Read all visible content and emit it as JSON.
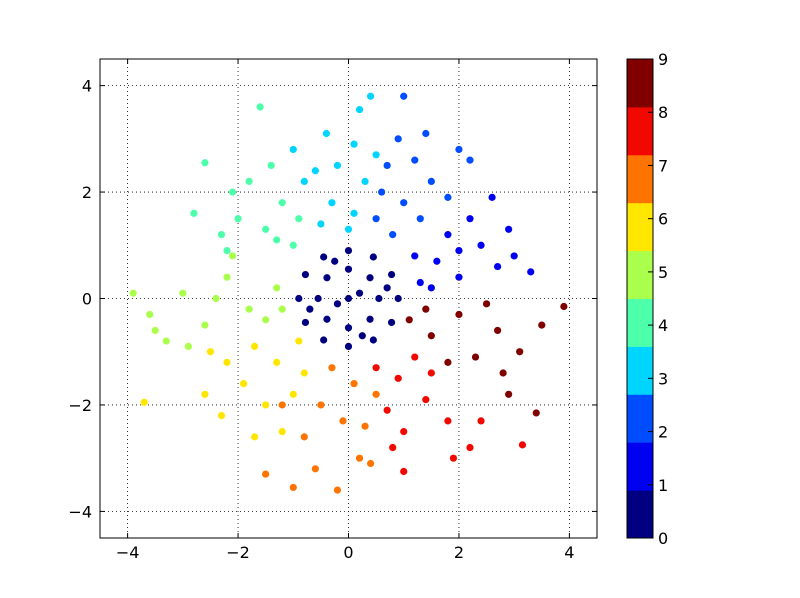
{
  "chart_data": {
    "type": "scatter",
    "xlim": [
      -4.5,
      4.5
    ],
    "ylim": [
      -4.5,
      4.5
    ],
    "xticks": [
      {
        "value": -4,
        "label": "−4"
      },
      {
        "value": -2,
        "label": "−2"
      },
      0,
      2,
      4
    ],
    "yticks": [
      {
        "value": -4,
        "label": "−4"
      },
      {
        "value": -2,
        "label": "−2"
      },
      0,
      2,
      4
    ],
    "grid": true,
    "colorbar": {
      "lim": [
        0,
        9
      ],
      "ticks": [
        0,
        1,
        2,
        3,
        4,
        5,
        6,
        7,
        8,
        9
      ],
      "colors": [
        "#000080",
        "#0000f1",
        "#004dff",
        "#00d5ff",
        "#4dffaa",
        "#aaff4d",
        "#ffe600",
        "#ff7400",
        "#f10800",
        "#800000"
      ]
    },
    "series": [
      {
        "color": "#000080",
        "x": [
          0.9,
          0.78,
          0.45,
          0,
          -0.45,
          -0.78,
          -0.9,
          -0.78,
          -0.45,
          0,
          0.45,
          0.78,
          0.55,
          0.39,
          0,
          -0.39,
          -0.55,
          -0.39,
          0,
          0.39,
          0,
          0.2,
          -0.2,
          0.7,
          -0.7,
          0.25,
          -0.25
        ],
        "values": [
          0,
          0.45,
          0.78,
          0.9,
          0.78,
          0.45,
          0,
          -0.45,
          -0.78,
          -0.9,
          -0.78,
          -0.45,
          0,
          0.39,
          0.55,
          0.39,
          0,
          -0.39,
          -0.55,
          -0.39,
          0,
          0.1,
          -0.1,
          0.2,
          -0.2,
          -0.7,
          0.7
        ]
      },
      {
        "color": "#0000f1",
        "x": [
          1.3,
          1.6,
          2.0,
          2.4,
          1.8,
          2.7,
          3.3,
          2.9,
          1.2,
          2.2,
          2.6,
          3.0,
          1.5,
          2.0
        ],
        "values": [
          0.3,
          0.7,
          0.4,
          1.0,
          1.2,
          0.6,
          0.5,
          1.3,
          0.8,
          1.5,
          1.9,
          0.8,
          0.2,
          0.9
        ]
      },
      {
        "color": "#004dff",
        "x": [
          0.8,
          1.0,
          0.6,
          1.5,
          1.2,
          0.9,
          1.4,
          1.0,
          2.0,
          0.5,
          1.8,
          0.7,
          1.3,
          2.2
        ],
        "values": [
          1.2,
          1.8,
          2.0,
          2.2,
          2.6,
          3.0,
          3.1,
          3.8,
          2.8,
          1.5,
          1.9,
          2.5,
          1.5,
          2.6
        ]
      },
      {
        "color": "#00d5ff",
        "x": [
          0,
          -0.3,
          0.3,
          -0.6,
          0.1,
          -0.4,
          0.4,
          0.2,
          -0.8,
          0.5,
          -0.2,
          -1.0,
          0.1,
          -0.5
        ],
        "values": [
          1.3,
          1.8,
          2.2,
          2.4,
          2.9,
          3.1,
          3.8,
          3.55,
          2.2,
          2.7,
          2.5,
          2.8,
          1.6,
          1.4
        ]
      },
      {
        "color": "#4dffaa",
        "x": [
          -1.0,
          -1.5,
          -1.2,
          -2.0,
          -1.8,
          -2.3,
          -2.6,
          -1.6,
          -2.1,
          -0.9,
          -2.8,
          -1.4,
          -2.2,
          -1.3
        ],
        "values": [
          1.0,
          1.3,
          1.8,
          1.5,
          2.2,
          1.2,
          2.55,
          3.6,
          2.0,
          1.5,
          1.6,
          2.5,
          0.9,
          1.1
        ]
      },
      {
        "color": "#aaff4d",
        "x": [
          -1.3,
          -1.8,
          -2.2,
          -2.6,
          -3.0,
          -3.9,
          -3.5,
          -2.9,
          -2.1,
          -1.5,
          -3.3,
          -2.4,
          -3.6,
          -1.2
        ],
        "values": [
          0.2,
          -0.2,
          0.4,
          -0.5,
          0.1,
          0.1,
          -0.6,
          -0.9,
          0.8,
          -0.4,
          -0.8,
          0,
          -0.3,
          -0.2
        ]
      },
      {
        "color": "#ffe600",
        "x": [
          -0.9,
          -1.3,
          -1.7,
          -1.9,
          -2.2,
          -1.5,
          -2.6,
          -3.7,
          -2.3,
          -1.2,
          -0.8,
          -2.5,
          -1.7,
          -1.0
        ],
        "values": [
          -0.8,
          -1.2,
          -0.9,
          -1.6,
          -1.2,
          -2.0,
          -1.8,
          -1.95,
          -2.2,
          -2.5,
          -1.4,
          -1.0,
          -2.6,
          -1.8
        ]
      },
      {
        "color": "#ff7400",
        "x": [
          -0.3,
          0.1,
          -0.5,
          0.3,
          -0.8,
          0.2,
          -0.2,
          -1.0,
          -1.5,
          0.4,
          -0.1,
          -1.2,
          0.5,
          -0.6
        ],
        "values": [
          -1.3,
          -1.6,
          -2.0,
          -2.4,
          -2.6,
          -3.0,
          -3.6,
          -3.55,
          -3.3,
          -3.1,
          -2.3,
          -2.0,
          -1.8,
          -3.2
        ]
      },
      {
        "color": "#f10800",
        "x": [
          0.5,
          0.9,
          0.7,
          1.4,
          1.0,
          1.8,
          1.9,
          2.2,
          1.0,
          3.15,
          1.5,
          0.8,
          2.4,
          1.2
        ],
        "values": [
          -1.3,
          -1.5,
          -2.1,
          -1.9,
          -2.5,
          -2.3,
          -3.0,
          -2.8,
          -3.25,
          -2.75,
          -1.4,
          -2.8,
          -2.3,
          -1.1
        ]
      },
      {
        "color": "#800000",
        "x": [
          1.1,
          1.5,
          2.0,
          2.3,
          2.7,
          3.1,
          3.4,
          3.9,
          2.9,
          3.5,
          1.8,
          2.5,
          2.8,
          1.4
        ],
        "values": [
          -0.4,
          -0.7,
          -0.3,
          -1.1,
          -0.6,
          -1.0,
          -2.15,
          -0.15,
          -1.8,
          -0.5,
          -1.2,
          -0.1,
          -1.4,
          -0.2
        ]
      }
    ]
  }
}
